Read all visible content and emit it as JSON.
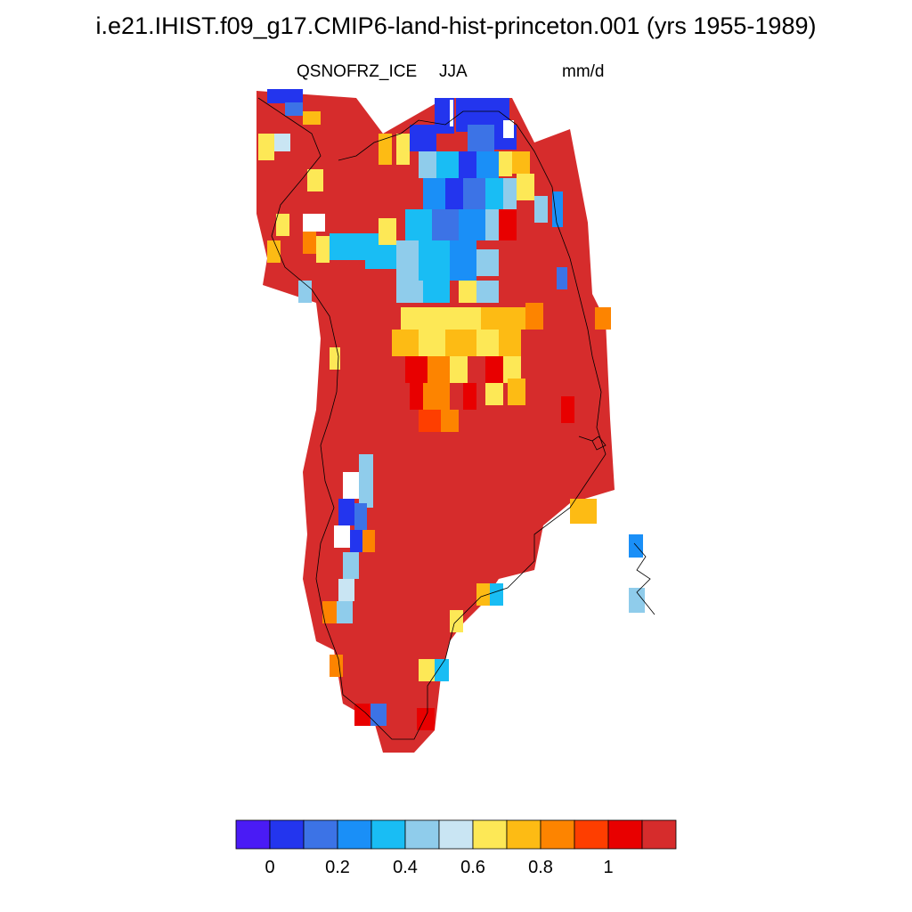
{
  "header": {
    "title": "i.e21.IHIST.f09_g17.CMIP6-land-hist-princeton.001 (yrs 1955-1989)",
    "variable": "QSNOFRZ_ICE",
    "season": "JJA",
    "units": "mm/d"
  },
  "colorbar": {
    "colors": [
      "#4a1bf5",
      "#2335ee",
      "#3c73e6",
      "#1a8ff7",
      "#19bdf4",
      "#8fcceb",
      "#c9e5f3",
      "#fde856",
      "#fdbb14",
      "#fd8400",
      "#fe3e00",
      "#e80000",
      "#d62c2c"
    ],
    "tick_labels": [
      "0",
      "0.2",
      "0.4",
      "0.6",
      "0.8",
      "1"
    ]
  },
  "legend_icons": {
    "coastline": "thin-black-line"
  }
}
